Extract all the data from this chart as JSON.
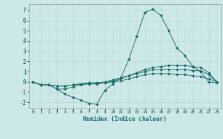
{
  "title": "",
  "xlabel": "Humidex (Indice chaleur)",
  "ylabel": "",
  "bg_color": "#cce8e8",
  "line_color": "#1a6e6a",
  "grid_color": "#b8d8d8",
  "xlim": [
    -0.5,
    23.5
  ],
  "ylim": [
    -2.6,
    7.6
  ],
  "xticks": [
    0,
    1,
    2,
    3,
    4,
    5,
    6,
    7,
    8,
    9,
    10,
    11,
    12,
    13,
    14,
    15,
    16,
    17,
    18,
    19,
    20,
    21,
    22,
    23
  ],
  "yticks": [
    -2,
    -1,
    0,
    1,
    2,
    3,
    4,
    5,
    6,
    7
  ],
  "series": [
    [
      0.0,
      -0.3,
      -0.3,
      -0.7,
      -1.2,
      -1.5,
      -1.8,
      -2.1,
      -2.2,
      -0.8,
      -0.2,
      0.4,
      2.2,
      4.5,
      6.8,
      7.1,
      6.5,
      5.0,
      3.3,
      2.6,
      1.5,
      1.0,
      0.0,
      -0.1
    ],
    [
      0.0,
      -0.3,
      -0.3,
      -0.7,
      -0.7,
      -0.5,
      -0.3,
      -0.2,
      -0.2,
      -0.1,
      0.1,
      0.3,
      0.6,
      0.9,
      1.2,
      1.4,
      1.5,
      1.6,
      1.6,
      1.6,
      1.5,
      1.4,
      0.9,
      0.0
    ],
    [
      0.0,
      -0.3,
      -0.3,
      -0.4,
      -0.4,
      -0.3,
      -0.2,
      -0.1,
      -0.1,
      0.0,
      0.2,
      0.4,
      0.6,
      0.8,
      1.0,
      1.2,
      1.2,
      1.2,
      1.2,
      1.2,
      1.1,
      1.1,
      0.7,
      0.0
    ],
    [
      0.0,
      -0.3,
      -0.3,
      -0.4,
      -0.4,
      -0.3,
      -0.2,
      -0.15,
      -0.15,
      -0.1,
      0.0,
      0.1,
      0.3,
      0.5,
      0.7,
      0.8,
      0.8,
      0.8,
      0.7,
      0.7,
      0.6,
      0.5,
      0.3,
      0.0
    ]
  ]
}
